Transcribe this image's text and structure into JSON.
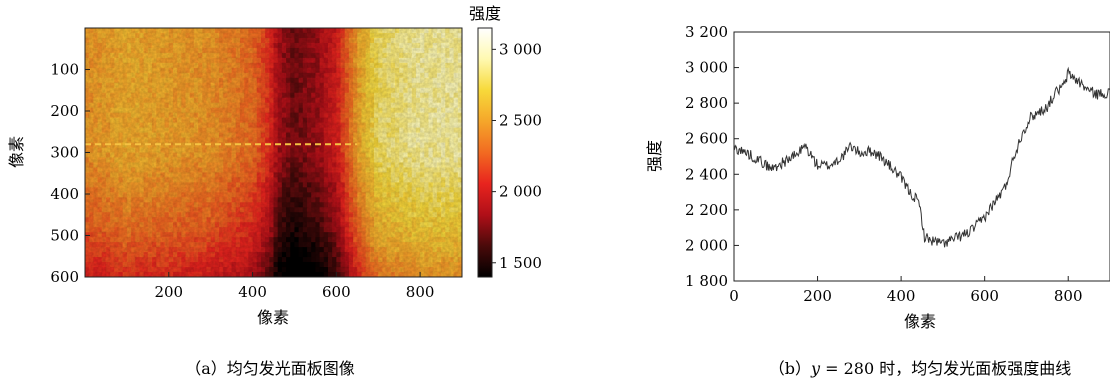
{
  "chart_data": [
    {
      "type": "heatmap",
      "caption": "（a）均匀发光面板图像",
      "xlabel": "像素",
      "ylabel": "像素",
      "x_ticks": [
        "200",
        "400",
        "600",
        "800"
      ],
      "x_tick_values": [
        200,
        400,
        600,
        800
      ],
      "y_ticks": [
        "100",
        "200",
        "300",
        "400",
        "500",
        "600"
      ],
      "y_tick_values": [
        100,
        200,
        300,
        400,
        500,
        600
      ],
      "xlim": [
        0,
        900
      ],
      "ylim": [
        0,
        600
      ],
      "y_axis_inverted": true,
      "colorbar": {
        "label": "强度",
        "ticks": [
          "3 000",
          "2 500",
          "2 000",
          "1 500"
        ],
        "tick_values": [
          3000,
          2500,
          2000,
          1500
        ],
        "range": [
          1400,
          3150
        ],
        "colormap": [
          "#000000",
          "#4a0a0a",
          "#b00f18",
          "#e8241e",
          "#f26a21",
          "#f5a62a",
          "#f7d93a",
          "#fff9b0",
          "#ffffff"
        ]
      },
      "guide_line_y": 280,
      "guide_line_color": "#f5c242",
      "intensity_profile": {
        "x": [
          0,
          100,
          200,
          300,
          400,
          440,
          460,
          500,
          550,
          600,
          650,
          700,
          800,
          900
        ],
        "values": [
          2450,
          2550,
          2500,
          2450,
          2300,
          2100,
          1850,
          1700,
          1800,
          2000,
          2500,
          2800,
          2900,
          2900
        ],
        "y_gradient": {
          "y": [
            0,
            300,
            500,
            600
          ],
          "offset": [
            0,
            0,
            -250,
            -450
          ]
        }
      }
    },
    {
      "type": "line",
      "caption": "（b）",
      "caption_var": "y",
      "caption_rest": " = 280 时，均匀发光面板强度曲线",
      "xlabel": "像素",
      "ylabel": "强度",
      "xlim": [
        0,
        900
      ],
      "ylim": [
        1800,
        3200
      ],
      "x_ticks": [
        "0",
        "200",
        "400",
        "600",
        "800"
      ],
      "x_tick_values": [
        0,
        200,
        400,
        600,
        800
      ],
      "y_ticks": [
        "1 800",
        "2 000",
        "2 200",
        "2 400",
        "2 600",
        "2 800",
        "3 000",
        "3 200"
      ],
      "y_tick_values": [
        1800,
        2000,
        2200,
        2400,
        2600,
        2800,
        3000,
        3200
      ],
      "line_color": "#333333",
      "series": [
        {
          "x": [
            0,
            30,
            60,
            90,
            120,
            150,
            170,
            200,
            230,
            260,
            280,
            300,
            330,
            350,
            380,
            400,
            420,
            440,
            448,
            455,
            470,
            500,
            530,
            560,
            580,
            600,
            620,
            650,
            670,
            690,
            710,
            730,
            750,
            770,
            790,
            800,
            820,
            850,
            870,
            900
          ],
          "values": [
            2550,
            2520,
            2480,
            2430,
            2470,
            2510,
            2560,
            2450,
            2450,
            2500,
            2560,
            2520,
            2530,
            2500,
            2430,
            2380,
            2300,
            2250,
            2180,
            2050,
            2030,
            2010,
            2040,
            2070,
            2110,
            2160,
            2230,
            2330,
            2500,
            2630,
            2720,
            2750,
            2780,
            2860,
            2900,
            2970,
            2930,
            2870,
            2850,
            2860
          ]
        }
      ]
    }
  ]
}
